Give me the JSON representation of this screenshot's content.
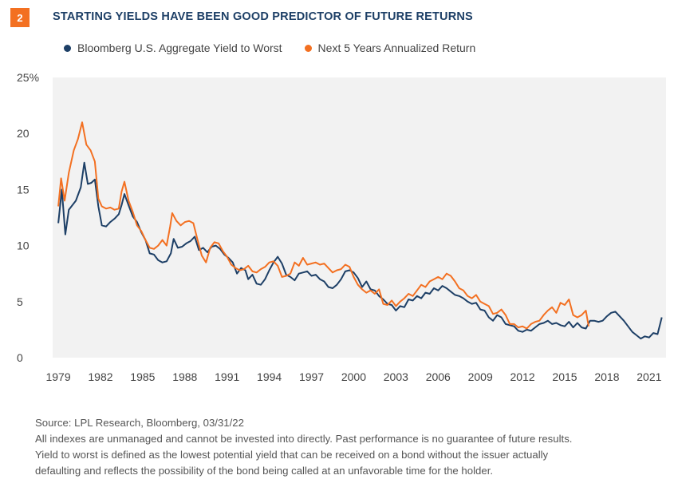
{
  "figure": {
    "number": "2",
    "title": "STARTING YIELDS HAVE BEEN GOOD PREDICTOR OF FUTURE RETURNS"
  },
  "notes": {
    "source": "Source: LPL Research, Bloomberg,  03/31/22",
    "disclaimer": "All indexes are unmanaged and cannot be invested into directly. Past performance is no guarantee of future results.",
    "definition_line1": "Yield to worst is defined as the lowest potential yield that can be received on a bond without the issuer actually",
    "definition_line2": "defaulting and reflects the possibility of the bond being called at an unfavorable time for the holder."
  },
  "chart_data": {
    "type": "line",
    "title": "STARTING YIELDS HAVE BEEN GOOD PREDICTOR OF FUTURE RETURNS",
    "xlabel": "",
    "ylabel": "",
    "xlim": [
      1978.6,
      2022.2
    ],
    "ylim": [
      0,
      25
    ],
    "x_ticks": [
      "1979",
      "1982",
      "1985",
      "1988",
      "1991",
      "1994",
      "1997",
      "2000",
      "2003",
      "2006",
      "2009",
      "2012",
      "2015",
      "2018",
      "2021"
    ],
    "y_ticks": [
      "0",
      "5",
      "10",
      "15",
      "20",
      "25%"
    ],
    "grid": false,
    "legend_position": "top",
    "series": [
      {
        "name": "Bloomberg U.S. Aggregate Yield to Worst",
        "color": "#1d3f66",
        "points": [
          [
            1979.0,
            12.0
          ],
          [
            1979.25,
            15.0
          ],
          [
            1979.5,
            11.0
          ],
          [
            1979.75,
            13.2
          ],
          [
            1980.25,
            14.0
          ],
          [
            1980.6,
            15.2
          ],
          [
            1980.85,
            17.4
          ],
          [
            1981.1,
            15.5
          ],
          [
            1981.35,
            15.6
          ],
          [
            1981.6,
            15.9
          ],
          [
            1981.85,
            13.5
          ],
          [
            1982.1,
            11.8
          ],
          [
            1982.4,
            11.7
          ],
          [
            1982.7,
            12.1
          ],
          [
            1983.0,
            12.4
          ],
          [
            1983.3,
            12.8
          ],
          [
            1983.5,
            13.6
          ],
          [
            1983.7,
            14.6
          ],
          [
            1984.0,
            13.6
          ],
          [
            1984.3,
            12.6
          ],
          [
            1984.6,
            12.1
          ],
          [
            1984.9,
            11.2
          ],
          [
            1985.2,
            10.5
          ],
          [
            1985.5,
            9.3
          ],
          [
            1985.8,
            9.2
          ],
          [
            1986.1,
            8.7
          ],
          [
            1986.4,
            8.5
          ],
          [
            1986.7,
            8.6
          ],
          [
            1987.0,
            9.3
          ],
          [
            1987.2,
            10.6
          ],
          [
            1987.5,
            9.8
          ],
          [
            1987.8,
            9.9
          ],
          [
            1988.1,
            10.2
          ],
          [
            1988.4,
            10.4
          ],
          [
            1988.7,
            10.8
          ],
          [
            1989.0,
            9.6
          ],
          [
            1989.3,
            9.8
          ],
          [
            1989.6,
            9.4
          ],
          [
            1989.9,
            9.9
          ],
          [
            1990.2,
            10.0
          ],
          [
            1990.5,
            9.7
          ],
          [
            1990.8,
            9.2
          ],
          [
            1991.1,
            8.9
          ],
          [
            1991.4,
            8.5
          ],
          [
            1991.7,
            7.5
          ],
          [
            1992.0,
            8.0
          ],
          [
            1992.3,
            7.8
          ],
          [
            1992.5,
            7.0
          ],
          [
            1992.8,
            7.4
          ],
          [
            1993.1,
            6.6
          ],
          [
            1993.4,
            6.5
          ],
          [
            1993.7,
            7.0
          ],
          [
            1994.0,
            7.8
          ],
          [
            1994.3,
            8.5
          ],
          [
            1994.6,
            9.0
          ],
          [
            1994.9,
            8.4
          ],
          [
            1995.2,
            7.4
          ],
          [
            1995.5,
            7.2
          ],
          [
            1995.8,
            6.9
          ],
          [
            1996.1,
            7.5
          ],
          [
            1996.4,
            7.6
          ],
          [
            1996.7,
            7.7
          ],
          [
            1997.0,
            7.3
          ],
          [
            1997.3,
            7.4
          ],
          [
            1997.6,
            7.0
          ],
          [
            1997.9,
            6.8
          ],
          [
            1998.2,
            6.3
          ],
          [
            1998.5,
            6.2
          ],
          [
            1998.8,
            6.5
          ],
          [
            1999.1,
            7.0
          ],
          [
            1999.4,
            7.7
          ],
          [
            1999.7,
            7.8
          ],
          [
            2000.0,
            7.6
          ],
          [
            2000.3,
            7.1
          ],
          [
            2000.6,
            6.3
          ],
          [
            2000.9,
            6.8
          ],
          [
            2001.2,
            6.1
          ],
          [
            2001.5,
            6.0
          ],
          [
            2001.8,
            5.5
          ],
          [
            2002.1,
            5.2
          ],
          [
            2002.4,
            4.8
          ],
          [
            2002.7,
            4.7
          ],
          [
            2003.0,
            4.2
          ],
          [
            2003.3,
            4.6
          ],
          [
            2003.6,
            4.5
          ],
          [
            2003.9,
            5.2
          ],
          [
            2004.2,
            5.1
          ],
          [
            2004.5,
            5.5
          ],
          [
            2004.8,
            5.3
          ],
          [
            2005.1,
            5.8
          ],
          [
            2005.4,
            5.7
          ],
          [
            2005.7,
            6.2
          ],
          [
            2006.0,
            6.0
          ],
          [
            2006.3,
            6.4
          ],
          [
            2006.6,
            6.2
          ],
          [
            2006.9,
            5.9
          ],
          [
            2007.2,
            5.6
          ],
          [
            2007.5,
            5.5
          ],
          [
            2007.8,
            5.3
          ],
          [
            2008.1,
            5.0
          ],
          [
            2008.4,
            4.8
          ],
          [
            2008.7,
            4.9
          ],
          [
            2009.0,
            4.3
          ],
          [
            2009.3,
            4.2
          ],
          [
            2009.6,
            3.6
          ],
          [
            2009.9,
            3.3
          ],
          [
            2010.2,
            3.8
          ],
          [
            2010.5,
            3.6
          ],
          [
            2010.8,
            3.0
          ],
          [
            2011.1,
            2.9
          ],
          [
            2011.4,
            2.8
          ],
          [
            2011.7,
            2.4
          ],
          [
            2012.0,
            2.3
          ],
          [
            2012.3,
            2.5
          ],
          [
            2012.6,
            2.4
          ],
          [
            2012.9,
            2.7
          ],
          [
            2013.2,
            3.0
          ],
          [
            2013.5,
            3.1
          ],
          [
            2013.8,
            3.3
          ],
          [
            2014.1,
            3.0
          ],
          [
            2014.4,
            3.1
          ],
          [
            2014.7,
            2.9
          ],
          [
            2015.0,
            2.8
          ],
          [
            2015.3,
            3.2
          ],
          [
            2015.6,
            2.7
          ],
          [
            2015.9,
            3.1
          ],
          [
            2016.2,
            2.7
          ],
          [
            2016.5,
            2.6
          ],
          [
            2016.8,
            3.3
          ],
          [
            2017.1,
            3.3
          ],
          [
            2017.4,
            3.2
          ],
          [
            2017.7,
            3.3
          ],
          [
            2018.0,
            3.7
          ],
          [
            2018.3,
            4.0
          ],
          [
            2018.6,
            4.1
          ],
          [
            2018.9,
            3.7
          ],
          [
            2019.2,
            3.3
          ],
          [
            2019.5,
            2.8
          ],
          [
            2019.8,
            2.3
          ],
          [
            2020.1,
            2.0
          ],
          [
            2020.4,
            1.7
          ],
          [
            2020.7,
            1.9
          ],
          [
            2021.0,
            1.8
          ],
          [
            2021.3,
            2.2
          ],
          [
            2021.6,
            2.1
          ],
          [
            2021.9,
            3.6
          ]
        ]
      },
      {
        "name": "Next 5 Years Annualized Return",
        "color": "#f37021",
        "points": [
          [
            1979.0,
            13.5
          ],
          [
            1979.2,
            16.0
          ],
          [
            1979.45,
            14.0
          ],
          [
            1979.75,
            16.5
          ],
          [
            1980.1,
            18.5
          ],
          [
            1980.4,
            19.5
          ],
          [
            1980.7,
            21.0
          ],
          [
            1981.0,
            19.0
          ],
          [
            1981.3,
            18.5
          ],
          [
            1981.6,
            17.5
          ],
          [
            1981.85,
            14.2
          ],
          [
            1982.1,
            13.5
          ],
          [
            1982.4,
            13.3
          ],
          [
            1982.7,
            13.4
          ],
          [
            1983.0,
            13.2
          ],
          [
            1983.3,
            13.3
          ],
          [
            1983.5,
            14.8
          ],
          [
            1983.7,
            15.7
          ],
          [
            1984.0,
            14.0
          ],
          [
            1984.3,
            13.0
          ],
          [
            1984.6,
            11.8
          ],
          [
            1984.9,
            11.3
          ],
          [
            1985.2,
            10.5
          ],
          [
            1985.5,
            9.8
          ],
          [
            1985.8,
            9.7
          ],
          [
            1986.1,
            10.0
          ],
          [
            1986.4,
            10.5
          ],
          [
            1986.7,
            10.0
          ],
          [
            1986.95,
            11.7
          ],
          [
            1987.1,
            12.9
          ],
          [
            1987.4,
            12.2
          ],
          [
            1987.7,
            11.8
          ],
          [
            1988.0,
            12.1
          ],
          [
            1988.3,
            12.2
          ],
          [
            1988.6,
            12.0
          ],
          [
            1988.9,
            10.5
          ],
          [
            1989.2,
            9.1
          ],
          [
            1989.5,
            8.5
          ],
          [
            1989.8,
            9.8
          ],
          [
            1990.1,
            10.3
          ],
          [
            1990.4,
            10.2
          ],
          [
            1990.7,
            9.5
          ],
          [
            1991.0,
            9.0
          ],
          [
            1991.3,
            8.3
          ],
          [
            1991.6,
            8.0
          ],
          [
            1991.9,
            7.8
          ],
          [
            1992.2,
            7.9
          ],
          [
            1992.5,
            8.2
          ],
          [
            1992.8,
            7.7
          ],
          [
            1993.1,
            7.6
          ],
          [
            1993.4,
            7.9
          ],
          [
            1993.7,
            8.1
          ],
          [
            1994.0,
            8.5
          ],
          [
            1994.3,
            8.6
          ],
          [
            1994.6,
            8.2
          ],
          [
            1994.9,
            7.2
          ],
          [
            1995.2,
            7.3
          ],
          [
            1995.5,
            7.5
          ],
          [
            1995.8,
            8.5
          ],
          [
            1996.1,
            8.2
          ],
          [
            1996.4,
            8.9
          ],
          [
            1996.7,
            8.3
          ],
          [
            1997.0,
            8.4
          ],
          [
            1997.3,
            8.5
          ],
          [
            1997.6,
            8.3
          ],
          [
            1997.9,
            8.4
          ],
          [
            1998.2,
            8.0
          ],
          [
            1998.5,
            7.6
          ],
          [
            1998.8,
            7.8
          ],
          [
            1999.1,
            7.9
          ],
          [
            1999.4,
            8.3
          ],
          [
            1999.7,
            8.1
          ],
          [
            2000.0,
            7.2
          ],
          [
            2000.3,
            6.5
          ],
          [
            2000.6,
            6.1
          ],
          [
            2000.9,
            5.8
          ],
          [
            2001.2,
            6.0
          ],
          [
            2001.5,
            5.7
          ],
          [
            2001.8,
            6.1
          ],
          [
            2002.1,
            4.8
          ],
          [
            2002.4,
            4.7
          ],
          [
            2002.7,
            5.1
          ],
          [
            2003.0,
            4.6
          ],
          [
            2003.3,
            5.0
          ],
          [
            2003.6,
            5.3
          ],
          [
            2003.9,
            5.7
          ],
          [
            2004.2,
            5.5
          ],
          [
            2004.5,
            6.0
          ],
          [
            2004.8,
            6.5
          ],
          [
            2005.1,
            6.3
          ],
          [
            2005.4,
            6.8
          ],
          [
            2005.7,
            7.0
          ],
          [
            2006.0,
            7.2
          ],
          [
            2006.3,
            7.0
          ],
          [
            2006.6,
            7.5
          ],
          [
            2006.9,
            7.3
          ],
          [
            2007.2,
            6.8
          ],
          [
            2007.5,
            6.2
          ],
          [
            2007.8,
            6.0
          ],
          [
            2008.1,
            5.5
          ],
          [
            2008.4,
            5.3
          ],
          [
            2008.7,
            5.6
          ],
          [
            2009.0,
            5.0
          ],
          [
            2009.3,
            4.8
          ],
          [
            2009.6,
            4.6
          ],
          [
            2009.9,
            3.9
          ],
          [
            2010.2,
            4.0
          ],
          [
            2010.5,
            4.3
          ],
          [
            2010.8,
            3.8
          ],
          [
            2011.1,
            3.0
          ],
          [
            2011.4,
            3.0
          ],
          [
            2011.7,
            2.7
          ],
          [
            2012.0,
            2.8
          ],
          [
            2012.3,
            2.6
          ],
          [
            2012.6,
            3.0
          ],
          [
            2012.9,
            3.2
          ],
          [
            2013.2,
            3.3
          ],
          [
            2013.5,
            3.8
          ],
          [
            2013.8,
            4.2
          ],
          [
            2014.1,
            4.5
          ],
          [
            2014.4,
            4.0
          ],
          [
            2014.7,
            4.9
          ],
          [
            2015.0,
            4.7
          ],
          [
            2015.3,
            5.2
          ],
          [
            2015.6,
            3.8
          ],
          [
            2015.9,
            3.6
          ],
          [
            2016.2,
            3.8
          ],
          [
            2016.5,
            4.2
          ],
          [
            2016.7,
            2.8
          ]
        ]
      }
    ]
  }
}
